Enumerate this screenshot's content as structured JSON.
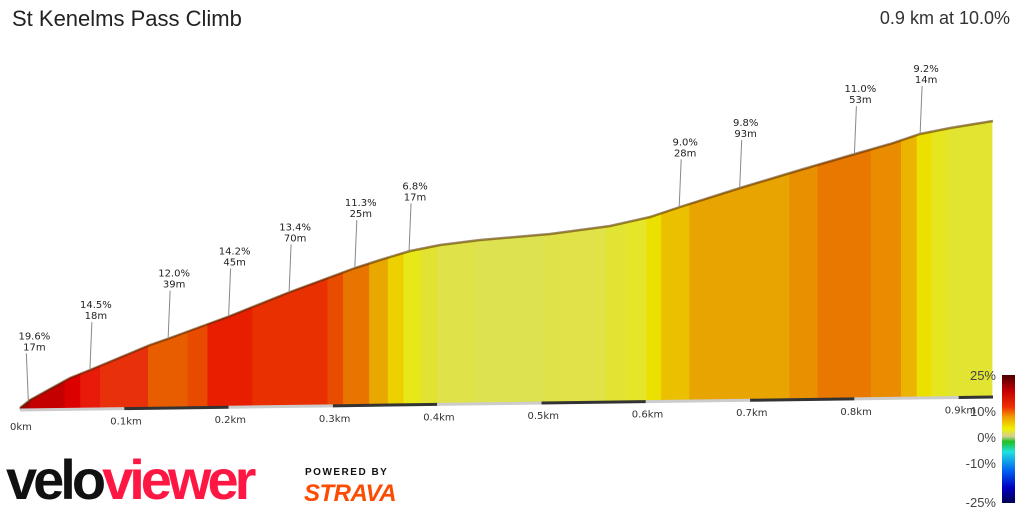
{
  "header": {
    "title": "St Kenelms Pass Climb",
    "summary": "0.9 km at 10.0%"
  },
  "profile": {
    "x_ticks": [
      "0km",
      "0.1km",
      "0.2km",
      "0.3km",
      "0.4km",
      "0.5km",
      "0.6km",
      "0.7km",
      "0.8km",
      "0.9km"
    ],
    "segments": [
      {
        "from": 0.0,
        "to": 0.01,
        "color": "#a80000"
      },
      {
        "from": 0.01,
        "to": 0.043,
        "color": "#c40000"
      },
      {
        "from": 0.043,
        "to": 0.058,
        "color": "#dc0000"
      },
      {
        "from": 0.058,
        "to": 0.077,
        "color": "#e81a0a"
      },
      {
        "from": 0.077,
        "to": 0.123,
        "color": "#e8300a"
      },
      {
        "from": 0.123,
        "to": 0.161,
        "color": "#e85d00"
      },
      {
        "from": 0.161,
        "to": 0.18,
        "color": "#e84a00"
      },
      {
        "from": 0.18,
        "to": 0.223,
        "color": "#e81e00"
      },
      {
        "from": 0.223,
        "to": 0.295,
        "color": "#e83000"
      },
      {
        "from": 0.295,
        "to": 0.31,
        "color": "#e84c00"
      },
      {
        "from": 0.31,
        "to": 0.335,
        "color": "#e87500"
      },
      {
        "from": 0.335,
        "to": 0.353,
        "color": "#e8a800"
      },
      {
        "from": 0.353,
        "to": 0.368,
        "color": "#ecd000"
      },
      {
        "from": 0.368,
        "to": 0.384,
        "color": "#e8e818"
      },
      {
        "from": 0.384,
        "to": 0.4,
        "color": "#e2e232"
      },
      {
        "from": 0.4,
        "to": 0.437,
        "color": "#e0e24a"
      },
      {
        "from": 0.437,
        "to": 0.504,
        "color": "#dde250"
      },
      {
        "from": 0.504,
        "to": 0.562,
        "color": "#e0e248"
      },
      {
        "from": 0.562,
        "to": 0.581,
        "color": "#e2e434"
      },
      {
        "from": 0.581,
        "to": 0.601,
        "color": "#e5e52a"
      },
      {
        "from": 0.601,
        "to": 0.615,
        "color": "#ece000"
      },
      {
        "from": 0.615,
        "to": 0.642,
        "color": "#ebc000"
      },
      {
        "from": 0.642,
        "to": 0.738,
        "color": "#e8a400"
      },
      {
        "from": 0.738,
        "to": 0.765,
        "color": "#e89000"
      },
      {
        "from": 0.765,
        "to": 0.816,
        "color": "#e87800"
      },
      {
        "from": 0.816,
        "to": 0.845,
        "color": "#ea8c00"
      },
      {
        "from": 0.845,
        "to": 0.86,
        "color": "#ecb400"
      },
      {
        "from": 0.86,
        "to": 0.874,
        "color": "#ece000"
      },
      {
        "from": 0.874,
        "to": 0.889,
        "color": "#e6e620"
      },
      {
        "from": 0.889,
        "to": 0.932,
        "color": "#e2e432"
      }
    ],
    "annotations": [
      {
        "grade": "19.6%",
        "length": "17m",
        "km": 0.008
      },
      {
        "grade": "14.5%",
        "length": "18m",
        "km": 0.067
      },
      {
        "grade": "12.0%",
        "length": "39m",
        "km": 0.142
      },
      {
        "grade": "14.2%",
        "length": "45m",
        "km": 0.2
      },
      {
        "grade": "13.4%",
        "length": "70m",
        "km": 0.258
      },
      {
        "grade": "11.3%",
        "length": "25m",
        "km": 0.321
      },
      {
        "grade": "6.8%",
        "length": "17m",
        "km": 0.373
      },
      {
        "grade": "9.0%",
        "length": "28m",
        "km": 0.632
      },
      {
        "grade": "9.8%",
        "length": "93m",
        "km": 0.69
      },
      {
        "grade": "11.0%",
        "length": "53m",
        "km": 0.8
      },
      {
        "grade": "9.2%",
        "length": "14m",
        "km": 0.863
      }
    ]
  },
  "legend": {
    "labels": [
      "25%",
      "10%",
      "0%",
      "-10%",
      "-25%"
    ]
  },
  "branding": {
    "logo_a": "velo",
    "logo_b": "viewer",
    "powered": "POWERED BY",
    "strava": "STRAVA"
  }
}
